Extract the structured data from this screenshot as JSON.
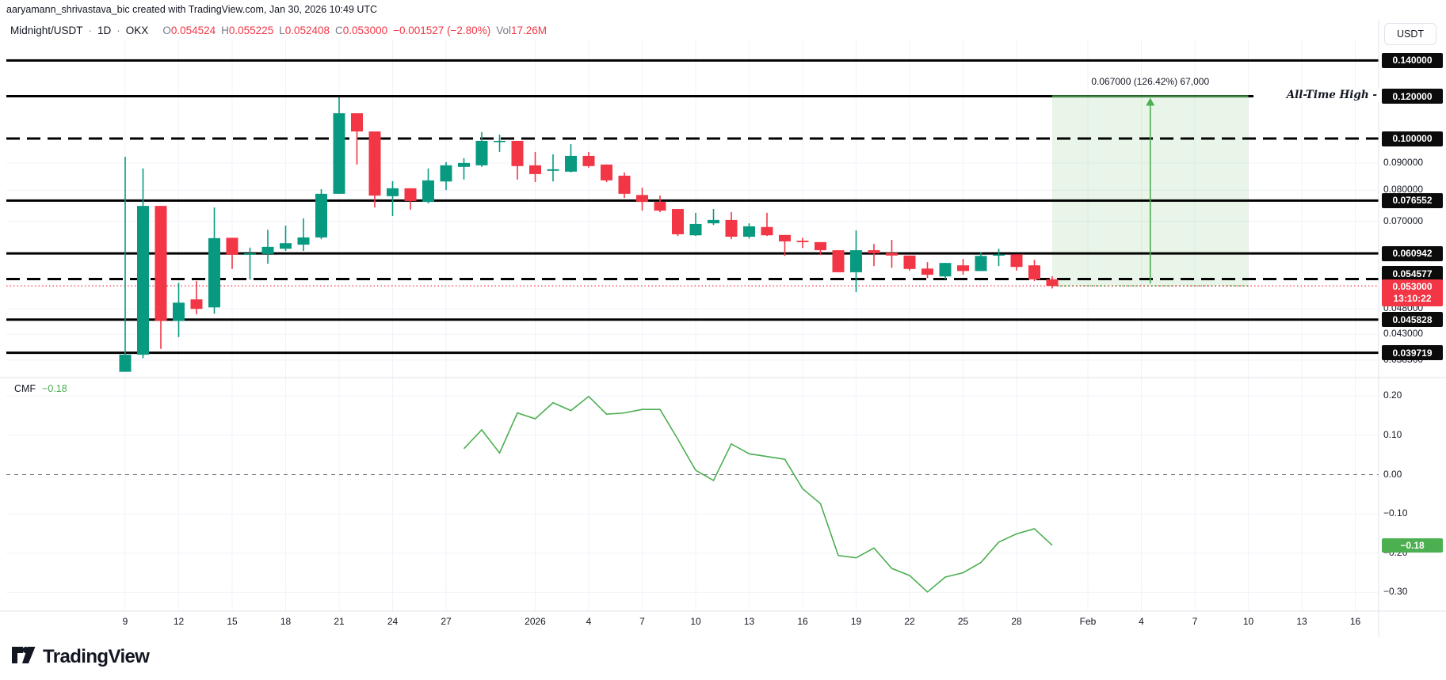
{
  "attribution": "aaryamann_shrivastava_bic created with TradingView.com, Jan 30, 2026 10:49 UTC",
  "legend": {
    "symbol": "Midnight/USDT",
    "sep": "·",
    "interval": "1D",
    "exchange": "OKX",
    "o_label": "O",
    "o": "0.054524",
    "h_label": "H",
    "h": "0.055225",
    "l_label": "L",
    "l": "0.052408",
    "c_label": "C",
    "c": "0.053000",
    "change": "−0.001527 (−2.80%)",
    "vol_label": "Vol",
    "vol": "17.26M"
  },
  "currency_button": "USDT",
  "logo_text": "TradingView",
  "colors": {
    "up": "#089981",
    "down": "#F23645",
    "level_line": "#000000",
    "current_price": "#F23645",
    "cmf_line": "#4CAF50",
    "projection_green": "#4CAF50",
    "grid": "#F0F3FA",
    "separator": "#E0E3EB",
    "text": "#131722",
    "muted_text": "#787B86",
    "axis_badge_bg": "#0B0B0B",
    "current_badge_bg": "#F23645",
    "cmf_badge_bg": "#4CAF50"
  },
  "chart_data": {
    "type": "candlestick",
    "title": "Midnight/USDT · 1D · OKX",
    "scale": "log",
    "candles": [
      {
        "d": "Dec 9",
        "o": 0.0366,
        "h": 0.0924,
        "l": 0.0366,
        "c": 0.0394
      },
      {
        "d": "Dec 10",
        "o": 0.0394,
        "h": 0.0879,
        "l": 0.0388,
        "c": 0.0748
      },
      {
        "d": "Dec 11",
        "o": 0.0748,
        "h": 0.0748,
        "l": 0.0404,
        "c": 0.0456
      },
      {
        "d": "Dec 12",
        "o": 0.0456,
        "h": 0.0537,
        "l": 0.0425,
        "c": 0.0493
      },
      {
        "d": "Dec 13",
        "o": 0.05,
        "h": 0.0541,
        "l": 0.0469,
        "c": 0.048
      },
      {
        "d": "Dec 14",
        "o": 0.0483,
        "h": 0.0743,
        "l": 0.047,
        "c": 0.0651
      },
      {
        "d": "Dec 15",
        "o": 0.0652,
        "h": 0.0652,
        "l": 0.057,
        "c": 0.0606
      },
      {
        "d": "Dec 16",
        "o": 0.0606,
        "h": 0.0625,
        "l": 0.0545,
        "c": 0.061
      },
      {
        "d": "Dec 17",
        "o": 0.0608,
        "h": 0.0675,
        "l": 0.0583,
        "c": 0.0627
      },
      {
        "d": "Dec 18",
        "o": 0.0622,
        "h": 0.0687,
        "l": 0.0616,
        "c": 0.0637
      },
      {
        "d": "Dec 19",
        "o": 0.0633,
        "h": 0.0709,
        "l": 0.0616,
        "c": 0.0653
      },
      {
        "d": "Dec 20",
        "o": 0.0653,
        "h": 0.0804,
        "l": 0.0648,
        "c": 0.0788
      },
      {
        "d": "Dec 21",
        "o": 0.0788,
        "h": 0.1194,
        "l": 0.0788,
        "c": 0.1115
      },
      {
        "d": "Dec 22",
        "o": 0.1115,
        "h": 0.1115,
        "l": 0.0894,
        "c": 0.1031
      },
      {
        "d": "Dec 23",
        "o": 0.1031,
        "h": 0.1031,
        "l": 0.0743,
        "c": 0.0782
      },
      {
        "d": "Dec 24",
        "o": 0.078,
        "h": 0.0832,
        "l": 0.0716,
        "c": 0.0807
      },
      {
        "d": "Dec 25",
        "o": 0.0807,
        "h": 0.0807,
        "l": 0.0736,
        "c": 0.0764
      },
      {
        "d": "Dec 26",
        "o": 0.0761,
        "h": 0.0879,
        "l": 0.0756,
        "c": 0.0835
      },
      {
        "d": "Dec 27",
        "o": 0.0831,
        "h": 0.0903,
        "l": 0.0801,
        "c": 0.0891
      },
      {
        "d": "Dec 28",
        "o": 0.0885,
        "h": 0.0919,
        "l": 0.0838,
        "c": 0.09
      },
      {
        "d": "Dec 29",
        "o": 0.0891,
        "h": 0.1028,
        "l": 0.0885,
        "c": 0.099
      },
      {
        "d": "Dec 30",
        "o": 0.0986,
        "h": 0.1017,
        "l": 0.0944,
        "c": 0.099
      },
      {
        "d": "Dec 31",
        "o": 0.099,
        "h": 0.099,
        "l": 0.0838,
        "c": 0.0888
      },
      {
        "d": "Jan 1",
        "o": 0.0891,
        "h": 0.0944,
        "l": 0.0829,
        "c": 0.0858
      },
      {
        "d": "Jan 2",
        "o": 0.087,
        "h": 0.0934,
        "l": 0.0831,
        "c": 0.0876
      },
      {
        "d": "Jan 3",
        "o": 0.0867,
        "h": 0.0976,
        "l": 0.0864,
        "c": 0.0928
      },
      {
        "d": "Jan 4",
        "o": 0.0928,
        "h": 0.0944,
        "l": 0.0882,
        "c": 0.0888
      },
      {
        "d": "Jan 5",
        "o": 0.0894,
        "h": 0.0894,
        "l": 0.0829,
        "c": 0.0835
      },
      {
        "d": "Jan 6",
        "o": 0.0852,
        "h": 0.0864,
        "l": 0.0774,
        "c": 0.0788
      },
      {
        "d": "Jan 7",
        "o": 0.0784,
        "h": 0.0809,
        "l": 0.0733,
        "c": 0.0761
      },
      {
        "d": "Jan 8",
        "o": 0.0761,
        "h": 0.0782,
        "l": 0.0728,
        "c": 0.0733
      },
      {
        "d": "Jan 9",
        "o": 0.0738,
        "h": 0.0738,
        "l": 0.0657,
        "c": 0.0662
      },
      {
        "d": "Jan 10",
        "o": 0.0659,
        "h": 0.0726,
        "l": 0.0657,
        "c": 0.0692
      },
      {
        "d": "Jan 11",
        "o": 0.0694,
        "h": 0.0738,
        "l": 0.0689,
        "c": 0.0704
      },
      {
        "d": "Jan 12",
        "o": 0.0704,
        "h": 0.0728,
        "l": 0.0648,
        "c": 0.0655
      },
      {
        "d": "Jan 13",
        "o": 0.0655,
        "h": 0.0694,
        "l": 0.065,
        "c": 0.0685
      },
      {
        "d": "Jan 14",
        "o": 0.0683,
        "h": 0.0726,
        "l": 0.0657,
        "c": 0.0659
      },
      {
        "d": "Jan 15",
        "o": 0.066,
        "h": 0.066,
        "l": 0.0603,
        "c": 0.0642
      },
      {
        "d": "Jan 16",
        "o": 0.0644,
        "h": 0.0652,
        "l": 0.0624,
        "c": 0.064
      },
      {
        "d": "Jan 17",
        "o": 0.064,
        "h": 0.064,
        "l": 0.0605,
        "c": 0.0618
      },
      {
        "d": "Jan 18",
        "o": 0.0618,
        "h": 0.0618,
        "l": 0.0562,
        "c": 0.0562
      },
      {
        "d": "Jan 19",
        "o": 0.0562,
        "h": 0.0673,
        "l": 0.0516,
        "c": 0.0618
      },
      {
        "d": "Jan 20",
        "o": 0.0618,
        "h": 0.0635,
        "l": 0.0577,
        "c": 0.061
      },
      {
        "d": "Jan 21",
        "o": 0.0611,
        "h": 0.0646,
        "l": 0.0573,
        "c": 0.0604
      },
      {
        "d": "Jan 22",
        "o": 0.0604,
        "h": 0.0604,
        "l": 0.0566,
        "c": 0.057
      },
      {
        "d": "Jan 23",
        "o": 0.0571,
        "h": 0.0587,
        "l": 0.0548,
        "c": 0.0556
      },
      {
        "d": "Jan 24",
        "o": 0.0552,
        "h": 0.0585,
        "l": 0.0545,
        "c": 0.0585
      },
      {
        "d": "Jan 25",
        "o": 0.0579,
        "h": 0.0595,
        "l": 0.0556,
        "c": 0.0565
      },
      {
        "d": "Jan 26",
        "o": 0.0565,
        "h": 0.0613,
        "l": 0.0565,
        "c": 0.0603
      },
      {
        "d": "Jan 27",
        "o": 0.0605,
        "h": 0.0622,
        "l": 0.0577,
        "c": 0.0607
      },
      {
        "d": "Jan 28",
        "o": 0.0607,
        "h": 0.0607,
        "l": 0.0566,
        "c": 0.0575
      },
      {
        "d": "Jan 29",
        "o": 0.0579,
        "h": 0.0593,
        "l": 0.0541,
        "c": 0.0545
      },
      {
        "d": "Jan 30",
        "o": 0.054524,
        "h": 0.055225,
        "l": 0.052408,
        "c": 0.053
      }
    ],
    "levels": [
      {
        "price": 0.14,
        "label": "0.140000",
        "style": "solid"
      },
      {
        "price": 0.12,
        "label": "0.120000",
        "style": "solid"
      },
      {
        "price": 0.1,
        "label": "0.100000",
        "style": "dashed"
      },
      {
        "price": 0.076552,
        "label": "0.076552",
        "style": "solid"
      },
      {
        "price": 0.060942,
        "label": "0.060942",
        "style": "solid"
      },
      {
        "price": 0.054577,
        "label": "0.054577",
        "style": "dashed"
      },
      {
        "price": 0.045828,
        "label": "0.045828",
        "style": "solid"
      },
      {
        "price": 0.039719,
        "label": "0.039719",
        "style": "solid"
      }
    ],
    "axis_ticks": [
      {
        "price": 0.09,
        "label": "0.090000"
      },
      {
        "price": 0.08,
        "label": "0.080000"
      },
      {
        "price": 0.07,
        "label": "0.070000"
      },
      {
        "price": 0.048,
        "label": "0.048000"
      },
      {
        "price": 0.043,
        "label": "0.043000"
      },
      {
        "price": 0.0385,
        "label": "0.038500"
      }
    ],
    "current_price": {
      "price": 0.053,
      "label": "0.053000",
      "countdown": "13:10:22"
    },
    "ath": {
      "label": "All-Time High -",
      "price": 0.12
    },
    "projection": {
      "label": "0.067000 (126.42%) 67,000",
      "from_price": 0.053,
      "to_price": 0.12,
      "start_i": 52,
      "end_i": 63
    },
    "x_labels": [
      {
        "t": "9",
        "i": 0
      },
      {
        "t": "12",
        "i": 3
      },
      {
        "t": "15",
        "i": 6
      },
      {
        "t": "18",
        "i": 9
      },
      {
        "t": "21",
        "i": 12
      },
      {
        "t": "24",
        "i": 15
      },
      {
        "t": "27",
        "i": 18
      },
      {
        "t": "2026",
        "i": 23
      },
      {
        "t": "4",
        "i": 26
      },
      {
        "t": "7",
        "i": 29
      },
      {
        "t": "10",
        "i": 32
      },
      {
        "t": "13",
        "i": 35
      },
      {
        "t": "16",
        "i": 38
      },
      {
        "t": "19",
        "i": 41
      },
      {
        "t": "22",
        "i": 44
      },
      {
        "t": "25",
        "i": 47
      },
      {
        "t": "28",
        "i": 50
      },
      {
        "t": "Feb",
        "i": 54
      },
      {
        "t": "4",
        "i": 57
      },
      {
        "t": "7",
        "i": 60
      },
      {
        "t": "10",
        "i": 63
      },
      {
        "t": "13",
        "i": 66
      },
      {
        "t": "16",
        "i": 69
      }
    ],
    "cmf": {
      "label": "CMF",
      "value": "−0.18",
      "badge": "−0.18",
      "ticks": [
        {
          "v": 0.2,
          "label": "0.20"
        },
        {
          "v": 0.1,
          "label": "0.10"
        },
        {
          "v": 0.0,
          "label": "0.00"
        },
        {
          "v": -0.1,
          "label": "−0.10"
        },
        {
          "v": -0.2,
          "label": "−0.20"
        },
        {
          "v": -0.3,
          "label": "−0.30"
        }
      ],
      "series": [
        {
          "i": 19,
          "v": 0.066
        },
        {
          "i": 20,
          "v": 0.114
        },
        {
          "i": 21,
          "v": 0.055
        },
        {
          "i": 22,
          "v": 0.157
        },
        {
          "i": 23,
          "v": 0.142
        },
        {
          "i": 24,
          "v": 0.183
        },
        {
          "i": 25,
          "v": 0.163
        },
        {
          "i": 26,
          "v": 0.199
        },
        {
          "i": 27,
          "v": 0.154
        },
        {
          "i": 28,
          "v": 0.157
        },
        {
          "i": 29,
          "v": 0.166
        },
        {
          "i": 30,
          "v": 0.166
        },
        {
          "i": 31,
          "v": 0.09
        },
        {
          "i": 32,
          "v": 0.011
        },
        {
          "i": 33,
          "v": -0.015
        },
        {
          "i": 34,
          "v": 0.078
        },
        {
          "i": 35,
          "v": 0.053
        },
        {
          "i": 36,
          "v": 0.046
        },
        {
          "i": 37,
          "v": 0.039
        },
        {
          "i": 38,
          "v": -0.036
        },
        {
          "i": 39,
          "v": -0.074
        },
        {
          "i": 40,
          "v": -0.206
        },
        {
          "i": 41,
          "v": -0.212
        },
        {
          "i": 42,
          "v": -0.187
        },
        {
          "i": 43,
          "v": -0.239
        },
        {
          "i": 44,
          "v": -0.257
        },
        {
          "i": 45,
          "v": -0.299
        },
        {
          "i": 46,
          "v": -0.261
        },
        {
          "i": 47,
          "v": -0.25
        },
        {
          "i": 48,
          "v": -0.224
        },
        {
          "i": 49,
          "v": -0.172
        },
        {
          "i": 50,
          "v": -0.151
        },
        {
          "i": 51,
          "v": -0.138
        },
        {
          "i": 52,
          "v": -0.18
        }
      ]
    }
  }
}
